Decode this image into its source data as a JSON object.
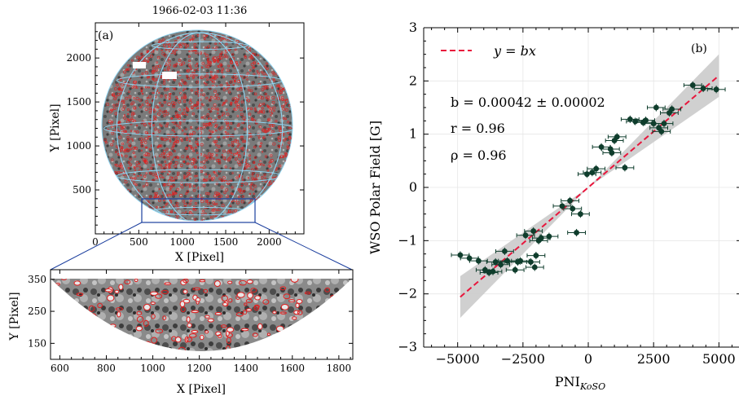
{
  "chart_data": [
    {
      "panel": "(a)",
      "type": "image",
      "title": "1966-02-03 11:36",
      "xlabel": "X [Pixel]",
      "ylabel": "Y [Pixel]",
      "xlim": [
        0,
        2400
      ],
      "ylim": [
        0,
        2400
      ],
      "xticks": [
        0,
        500,
        1000,
        1500,
        2000
      ],
      "yticks": [
        500,
        1000,
        1500,
        2000
      ],
      "disk": {
        "center": [
          1200,
          1200
        ],
        "radius": 1100
      },
      "zoom_box": {
        "x": [
          550,
          1850
        ],
        "y": [
          100,
          380
        ]
      },
      "colors": {
        "disk": "#8c8c8c",
        "contour": "#e02020",
        "grid": "#8fd3ef",
        "box": "#1c3f9e"
      }
    },
    {
      "panel": "(a) inset",
      "type": "image",
      "xlabel": "X [Pixel]",
      "ylabel": "Y [Pixel]",
      "xlim": [
        560,
        1860
      ],
      "ylim": [
        100,
        380
      ],
      "xticks": [
        600,
        800,
        1000,
        1200,
        1400,
        1600,
        1800
      ],
      "yticks": [
        150,
        250,
        350
      ]
    },
    {
      "panel": "(b)",
      "type": "scatter",
      "xlabel": "PNI",
      "xlabel_sub": "KoSO",
      "ylabel": "WSO Polar Field [G]",
      "xlim": [
        -6300,
        5800
      ],
      "ylim": [
        -3,
        3
      ],
      "xticks": [
        -5000,
        -2500,
        0,
        2500,
        5000
      ],
      "xtick_labels": [
        "−5000",
        "−2500",
        "0",
        "2500",
        "5000"
      ],
      "yticks": [
        -3,
        -2,
        -1,
        0,
        1,
        2,
        3
      ],
      "ytick_labels": [
        "−3",
        "−2",
        "−1",
        "0",
        "1",
        "2",
        "3"
      ],
      "legend": {
        "label": "y = bx",
        "position": "top-left"
      },
      "fit": {
        "slope": 0.00042,
        "band": 2e-05
      },
      "annotations": [
        "b = 0.00042 ± 0.00002",
        "r = 0.96",
        "ρ = 0.96"
      ],
      "colors": {
        "points": "#0f3d2c",
        "fit": "#e8163c",
        "band": "#c8c8c8",
        "grid": "#e6e6e6"
      },
      "points": [
        {
          "x": -4900,
          "y": -1.27
        },
        {
          "x": -4550,
          "y": -1.33
        },
        {
          "x": -4200,
          "y": -1.38
        },
        {
          "x": -3950,
          "y": -1.55
        },
        {
          "x": -3800,
          "y": -1.6
        },
        {
          "x": -3650,
          "y": -1.58
        },
        {
          "x": -3550,
          "y": -1.4
        },
        {
          "x": -3350,
          "y": -1.45
        },
        {
          "x": -3200,
          "y": -1.2
        },
        {
          "x": -3100,
          "y": -1.38
        },
        {
          "x": -2800,
          "y": -1.55
        },
        {
          "x": -2700,
          "y": -1.4
        },
        {
          "x": -2600,
          "y": -1.38
        },
        {
          "x": -2400,
          "y": -0.9
        },
        {
          "x": -2200,
          "y": -1.4
        },
        {
          "x": -2100,
          "y": -0.82
        },
        {
          "x": -2050,
          "y": -1.5
        },
        {
          "x": -2000,
          "y": -1.28
        },
        {
          "x": -1900,
          "y": -1.0
        },
        {
          "x": -1800,
          "y": -0.95
        },
        {
          "x": -1500,
          "y": -0.92
        },
        {
          "x": -1000,
          "y": -0.35
        },
        {
          "x": -700,
          "y": -0.25
        },
        {
          "x": -600,
          "y": -0.4
        },
        {
          "x": -450,
          "y": -0.85
        },
        {
          "x": -300,
          "y": -0.5
        },
        {
          "x": -50,
          "y": 0.25
        },
        {
          "x": 150,
          "y": 0.28
        },
        {
          "x": 300,
          "y": 0.35
        },
        {
          "x": 500,
          "y": 0.76
        },
        {
          "x": 850,
          "y": 0.72
        },
        {
          "x": 900,
          "y": 0.65
        },
        {
          "x": 1000,
          "y": 0.88
        },
        {
          "x": 1100,
          "y": 0.95
        },
        {
          "x": 1400,
          "y": 0.37
        },
        {
          "x": 1600,
          "y": 1.28
        },
        {
          "x": 1800,
          "y": 1.24
        },
        {
          "x": 2100,
          "y": 1.22
        },
        {
          "x": 2200,
          "y": 1.26
        },
        {
          "x": 2500,
          "y": 1.2
        },
        {
          "x": 2600,
          "y": 1.5
        },
        {
          "x": 2700,
          "y": 1.12
        },
        {
          "x": 2800,
          "y": 1.05
        },
        {
          "x": 2900,
          "y": 1.2
        },
        {
          "x": 3100,
          "y": 1.4
        },
        {
          "x": 3200,
          "y": 1.47
        },
        {
          "x": 4000,
          "y": 1.92
        },
        {
          "x": 4400,
          "y": 1.86
        },
        {
          "x": 4900,
          "y": 1.84
        }
      ]
    }
  ]
}
